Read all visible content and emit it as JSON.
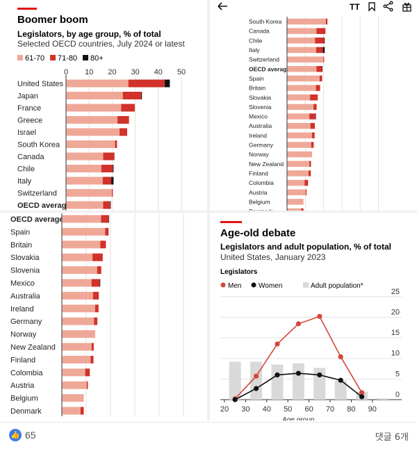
{
  "colors": {
    "c6170": "#efa898",
    "c7180": "#d1322a",
    "c80": "#111111",
    "men": "#d6463a",
    "women": "#111111",
    "population": "#d9d9d9",
    "accent": "#e3120b",
    "grid": "#e2e2e2"
  },
  "toolbar": {
    "icons": [
      "back-arrow-icon",
      "text-size-icon",
      "bookmark-icon",
      "share-icon",
      "gift-icon"
    ],
    "text_size_label": "TT"
  },
  "chart_data": [
    {
      "type": "bar",
      "stacked": true,
      "orientation": "horizontal",
      "title": "Boomer boom",
      "subtitle": "Legislators, by age group, % of total",
      "subtitle2": "Selected OECD countries, July 2024 or latest",
      "legend": [
        "61-70",
        "71-80",
        "80+"
      ],
      "legend_placement": "top-left",
      "xlim": [
        0,
        50
      ],
      "xticks": [
        "0",
        "10",
        "20",
        "30",
        "40",
        "50"
      ],
      "categories": [
        "United States",
        "Japan",
        "France",
        "Greece",
        "Israel",
        "South Korea",
        "Canada",
        "Chile",
        "Italy",
        "Switzerland",
        "OECD average",
        "Spain",
        "Britain",
        "Slovakia",
        "Slovenia",
        "Mexico",
        "Australia",
        "Ireland",
        "Germany",
        "Norway",
        "New Zealand",
        "Finland",
        "Colombia",
        "Austria",
        "Belgium",
        "Denmark"
      ],
      "series": [
        {
          "name": "61-70",
          "values": [
            27,
            24.6,
            23.9,
            22.3,
            23.2,
            21.2,
            16.1,
            15.3,
            15.9,
            19.9,
            16.1,
            17.8,
            15.8,
            12.6,
            14.5,
            12.2,
            12.8,
            13.7,
            13.2,
            13.7,
            12.2,
            11.8,
            9.6,
            10.2,
            9,
            7.7
          ]
        },
        {
          "name": "71-80",
          "values": [
            15.8,
            8,
            5.9,
            5,
            3.3,
            0.9,
            4.9,
            5,
            3.7,
            0.4,
            3.1,
            1.4,
            2.3,
            4.2,
            1.7,
            3.4,
            2.4,
            1.4,
            1.4,
            0,
            0.9,
            1.2,
            1.9,
            0.5,
            0,
            1.3
          ]
        },
        {
          "name": "80+",
          "values": [
            2.2,
            0.3,
            0,
            0,
            0,
            0,
            0,
            0.3,
            1,
            0,
            0.2,
            0,
            0,
            0,
            0,
            0.2,
            0,
            0,
            0,
            0,
            0,
            0,
            0,
            0,
            0,
            0
          ]
        }
      ],
      "highlight": "OECD average"
    },
    {
      "type": "line",
      "title": "Age-old debate",
      "subtitle": "Legislators and adult population, % of total",
      "subtitle2": "United States, January 2023",
      "legend_title": "Legislators",
      "legend": [
        "Men",
        "Women",
        "Adult population*"
      ],
      "legend_placement": "top",
      "xlabel": "Age group",
      "xticks": [
        "20",
        "30",
        "40",
        "50",
        "60",
        "70",
        "80",
        "90"
      ],
      "yticks": [
        "0",
        "5",
        "10",
        "15",
        "20",
        "25"
      ],
      "xlim": [
        20,
        100
      ],
      "ylim": [
        0,
        25
      ],
      "y_axis_side": "right",
      "grid": true,
      "x": [
        25,
        35,
        45,
        55,
        65,
        75,
        85
      ],
      "series": [
        {
          "name": "Men",
          "values": [
            0.2,
            5.7,
            13.5,
            18.4,
            20.2,
            10.4,
            1.7
          ]
        },
        {
          "name": "Women",
          "values": [
            0,
            2.7,
            6,
            6.4,
            6,
            4.7,
            0.7
          ]
        }
      ],
      "bars": {
        "name": "Adult population*",
        "x": [
          25,
          35,
          45,
          55,
          65,
          75,
          85,
          95
        ],
        "values": [
          9.2,
          9.2,
          8.5,
          8.8,
          7.7,
          4.6,
          1.9,
          0.3
        ]
      }
    }
  ],
  "footer": {
    "likes": "65",
    "comments": "댓글 6개"
  }
}
